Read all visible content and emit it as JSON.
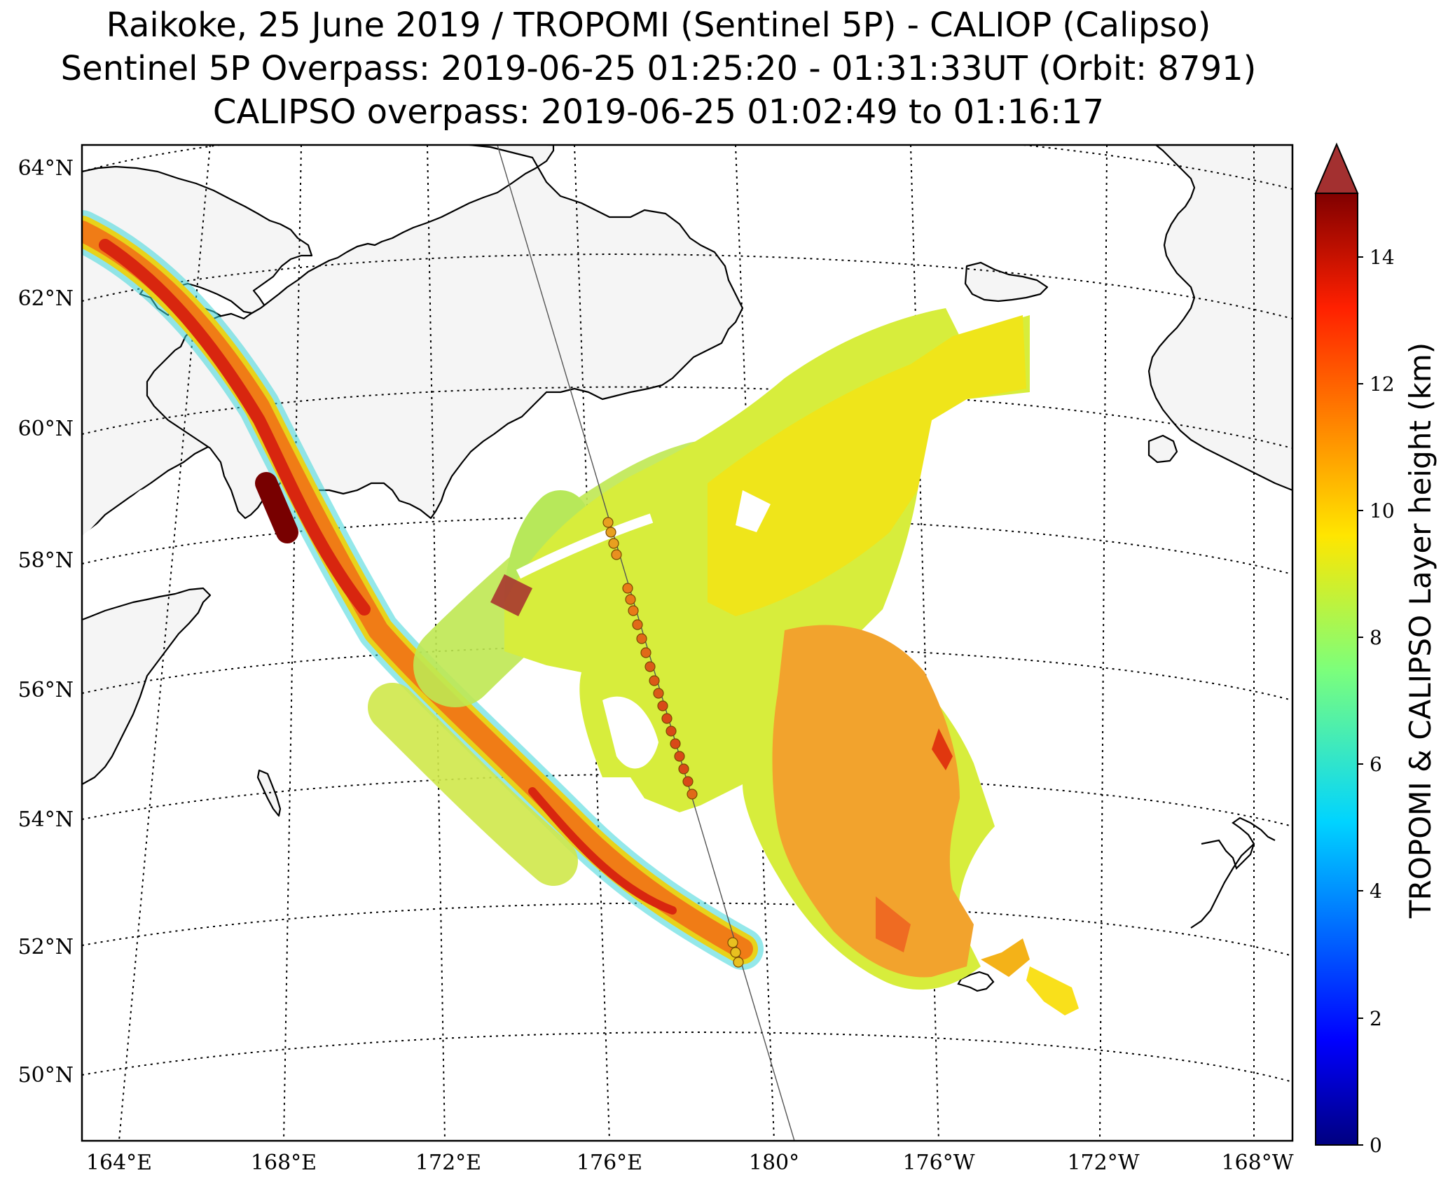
{
  "title": {
    "line1": "Raikoke, 25 June 2019 / TROPOMI (Sentinel 5P) - CALIOP (Calipso)",
    "line2": "Sentinel 5P Overpass: 2019-06-25 01:25:20 - 01:31:33UT (Orbit: 8791)",
    "line3": "CALIPSO overpass: 2019-06-25 01:02:49 to 01:16:17"
  },
  "map": {
    "lat_labels": [
      "64°N",
      "62°N",
      "60°N",
      "58°N",
      "56°N",
      "54°N",
      "52°N",
      "50°N"
    ],
    "lon_labels": [
      "164°E",
      "168°E",
      "172°E",
      "176°E",
      "180°",
      "176°W",
      "172°W",
      "168°W"
    ]
  },
  "colorbar": {
    "label": "TROPOMI & CALIPSO Layer height (km)",
    "ticks": [
      "0",
      "2",
      "4",
      "6",
      "8",
      "10",
      "12",
      "14"
    ],
    "min": 0,
    "max": 15,
    "extend": "max",
    "colormap": "jet"
  },
  "colors": {
    "land": "#f5f5f5",
    "coastline": "#000000",
    "grid": "#000000",
    "caliop_track": "#555555",
    "caliop_marker_edge": "#7a4a00"
  }
}
